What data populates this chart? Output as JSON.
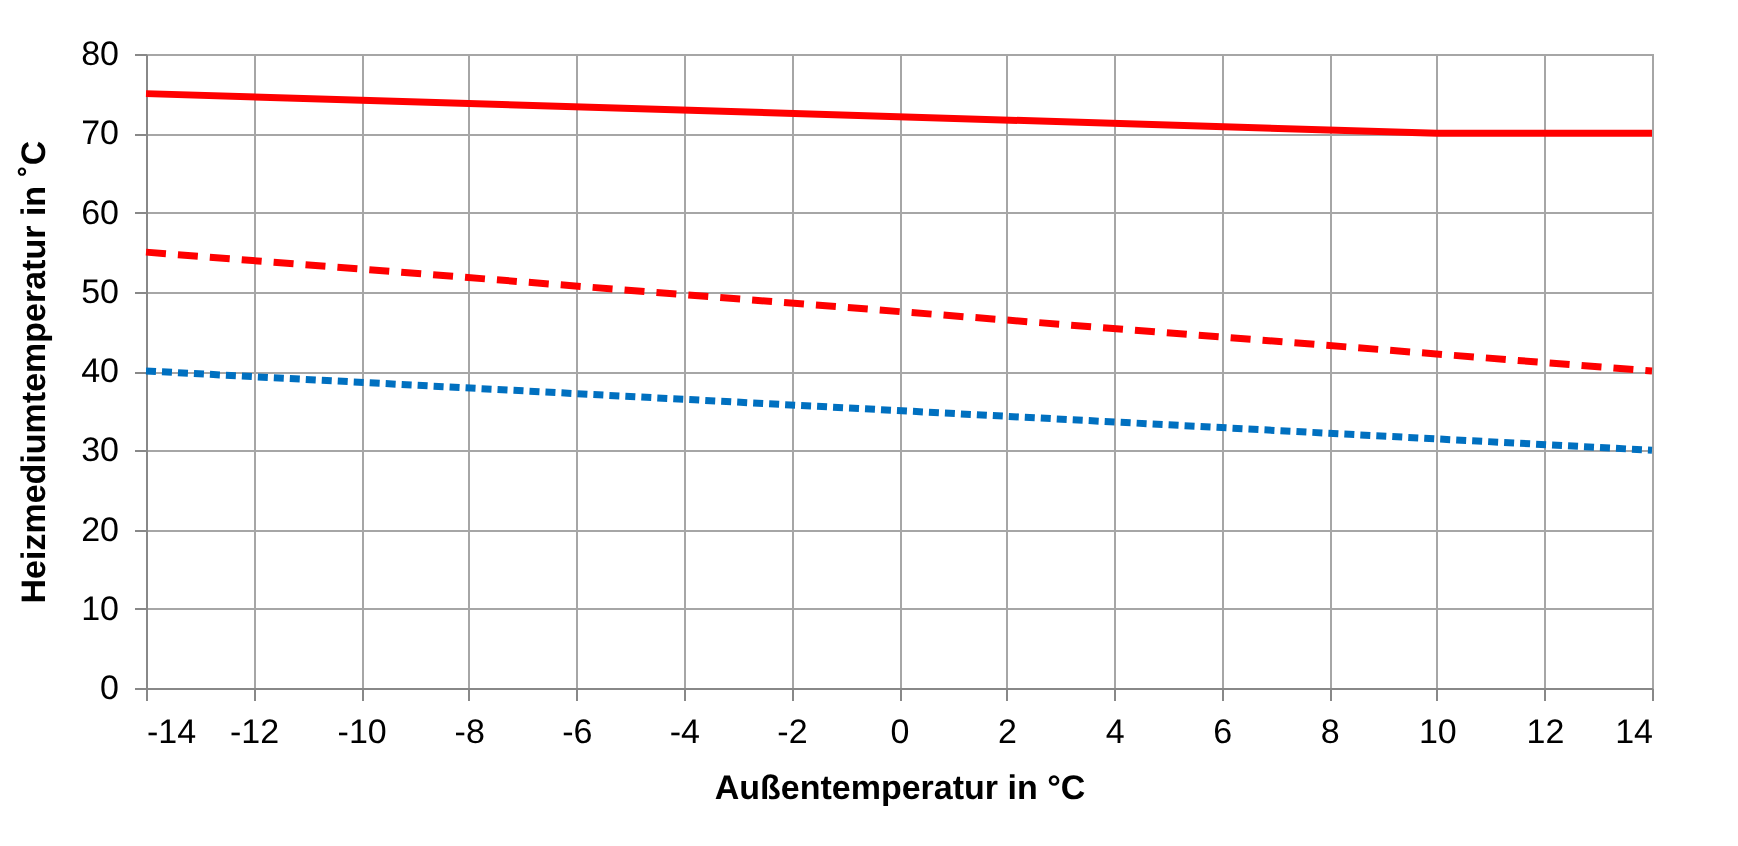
{
  "chart_data": {
    "type": "line",
    "xlabel": "Außentemperatur in °C",
    "ylabel": "Heizmediumtemperatur in ˚C",
    "series": [
      {
        "color": "#ff0000",
        "line_style": "solid",
        "x": [
          -14,
          10,
          14
        ],
        "values": [
          75,
          70,
          70
        ]
      },
      {
        "color": "#ff0000",
        "line_style": "dashed",
        "x": [
          -14,
          14
        ],
        "values": [
          55,
          40
        ]
      },
      {
        "color": "#0070c0",
        "line_style": "dotted",
        "x": [
          -14,
          14
        ],
        "values": [
          40,
          30
        ]
      }
    ],
    "xlim": [
      -14,
      14
    ],
    "xticks": [
      -14,
      -12,
      -10,
      -8,
      -6,
      -4,
      -2,
      0,
      2,
      4,
      6,
      8,
      10,
      12,
      14
    ],
    "ylim": [
      0,
      80
    ],
    "yticks": [
      0,
      10,
      20,
      30,
      40,
      50,
      60,
      70,
      80
    ],
    "grid": true,
    "marker": "none"
  }
}
